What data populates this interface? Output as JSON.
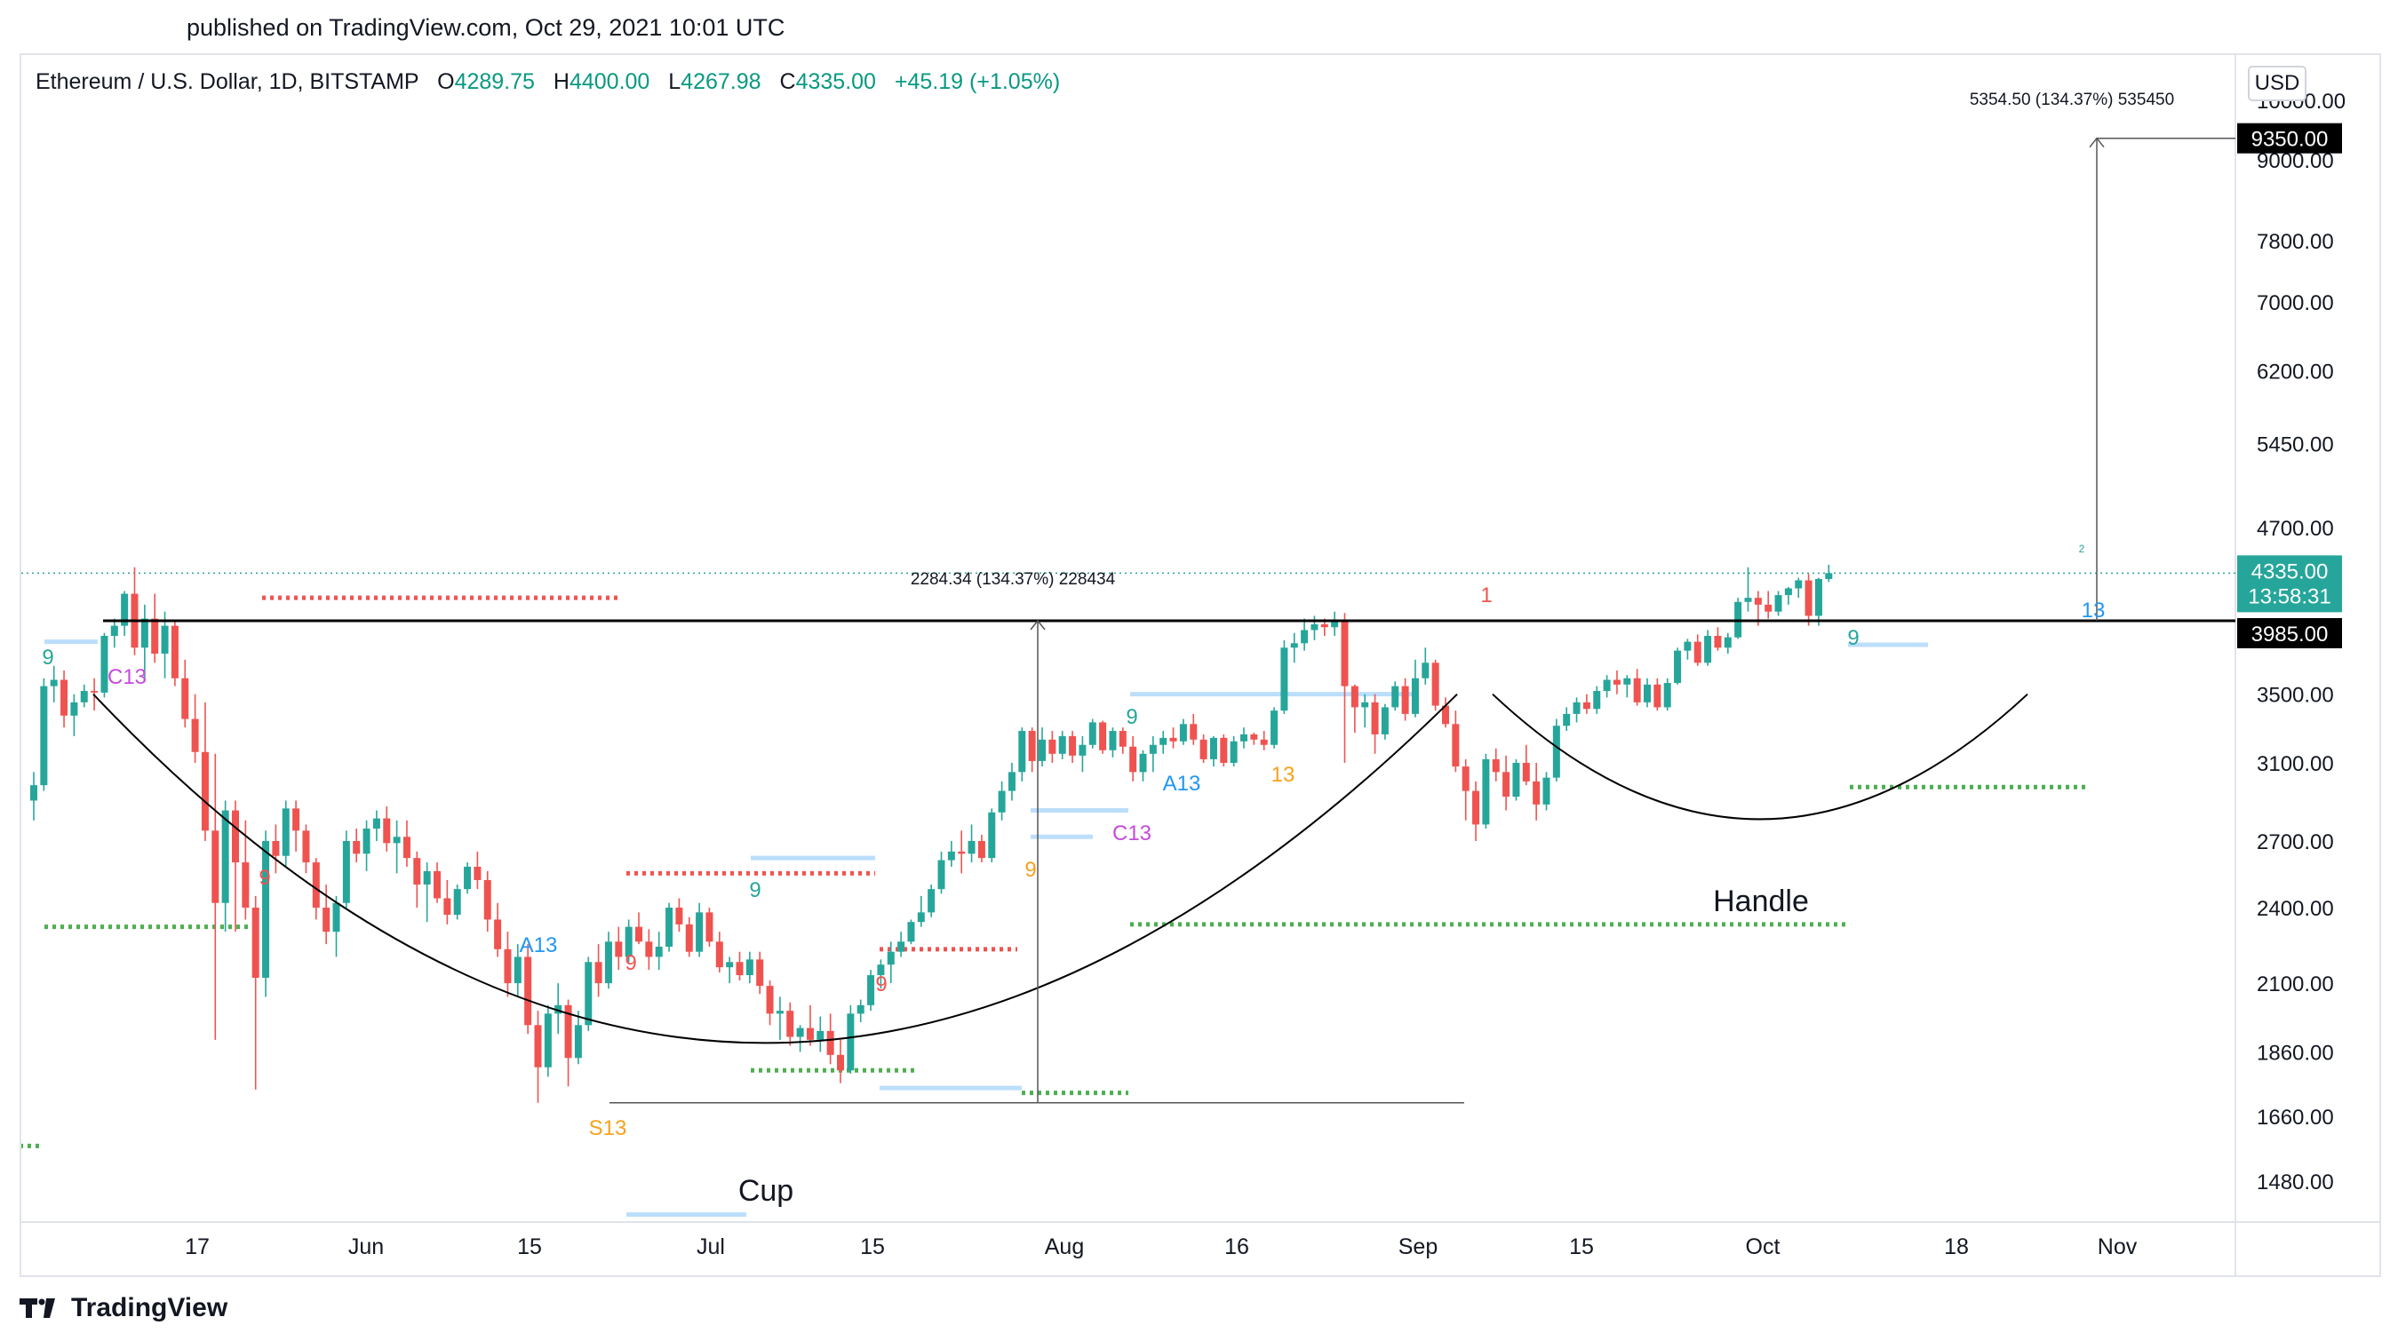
{
  "header": {
    "published": "published on TradingView.com, Oct 29, 2021 10:01 UTC"
  },
  "legend": {
    "symbol": "Ethereum / U.S. Dollar, 1D, BITSTAMP",
    "open_label": "O",
    "open": "4289.75",
    "high_label": "H",
    "high": "4400.00",
    "low_label": "L",
    "low": "4267.98",
    "close_label": "C",
    "close": "4335.00",
    "change": "+45.19 (+1.05%)"
  },
  "currency_button": "USD",
  "footer": {
    "brand": "TradingView"
  },
  "colors": {
    "up": "#26a69a",
    "down": "#ef5350",
    "green_dots": "#4caf50",
    "red_dots": "#ef5350",
    "blue_line": "#bbdefb",
    "neckline": "#000000",
    "price_badge": "#26a69a"
  },
  "chart_data": {
    "type": "candlestick",
    "symbol": "ETH/USD",
    "timeframe": "1D",
    "scale": "log",
    "ylim": [
      1330,
      10000
    ],
    "y_ticks": [
      "1480.00",
      "1660.00",
      "1860.00",
      "2100.00",
      "2400.00",
      "2700.00",
      "3100.00",
      "3500.00",
      "4700.00",
      "5450.00",
      "6200.00",
      "7000.00",
      "7800.00",
      "9000.00",
      "10000.00"
    ],
    "x_ticks": [
      "17",
      "Jun",
      "15",
      "Jul",
      "15",
      "Aug",
      "16",
      "Sep",
      "15",
      "Oct",
      "18",
      "Nov"
    ],
    "price_labels": {
      "current": "4335.00",
      "countdown": "13:58:31",
      "neckline": "3985.00",
      "target": "9350.00"
    },
    "annotations": {
      "cup": "Cup",
      "handle": "Handle",
      "measure_cup": "2284.34 (134.37%) 228434",
      "measure_target": "5354.50 (134.37%) 535450"
    },
    "indicator_labels": [
      "9",
      "C13",
      "9",
      "A13",
      "9",
      "S13",
      "9",
      "9",
      "9",
      "9",
      "C13",
      "A13",
      "13",
      "1",
      "9",
      "2",
      "13"
    ],
    "ohlc": [
      [
        2900,
        3050,
        2800,
        2980
      ],
      [
        2980,
        3600,
        2950,
        3550
      ],
      [
        3550,
        3680,
        3450,
        3590
      ],
      [
        3590,
        3650,
        3300,
        3370
      ],
      [
        3370,
        3500,
        3250,
        3450
      ],
      [
        3450,
        3560,
        3420,
        3520
      ],
      [
        3520,
        3600,
        3400,
        3510
      ],
      [
        3510,
        3900,
        3480,
        3880
      ],
      [
        3880,
        4000,
        3800,
        3950
      ],
      [
        3950,
        4200,
        3880,
        4180
      ],
      [
        4180,
        4380,
        3750,
        3800
      ],
      [
        3800,
        4100,
        3600,
        4000
      ],
      [
        4000,
        4180,
        3700,
        3760
      ],
      [
        3760,
        4050,
        3600,
        3950
      ],
      [
        3950,
        3980,
        3550,
        3600
      ],
      [
        3600,
        3720,
        3300,
        3350
      ],
      [
        3350,
        3500,
        3100,
        3160
      ],
      [
        3160,
        3450,
        2700,
        2750
      ],
      [
        2750,
        3150,
        1900,
        2420
      ],
      [
        2420,
        2900,
        2300,
        2850
      ],
      [
        2850,
        2900,
        2300,
        2600
      ],
      [
        2600,
        2800,
        2350,
        2400
      ],
      [
        2400,
        2450,
        1740,
        2120
      ],
      [
        2120,
        2750,
        2050,
        2700
      ],
      [
        2700,
        2780,
        2550,
        2630
      ],
      [
        2630,
        2900,
        2580,
        2860
      ],
      [
        2860,
        2900,
        2650,
        2750
      ],
      [
        2750,
        2780,
        2550,
        2600
      ],
      [
        2600,
        2620,
        2350,
        2400
      ],
      [
        2400,
        2500,
        2250,
        2300
      ],
      [
        2300,
        2450,
        2200,
        2420
      ],
      [
        2420,
        2750,
        2400,
        2700
      ],
      [
        2700,
        2760,
        2600,
        2640
      ],
      [
        2640,
        2800,
        2560,
        2760
      ],
      [
        2760,
        2850,
        2700,
        2810
      ],
      [
        2810,
        2870,
        2650,
        2690
      ],
      [
        2690,
        2800,
        2550,
        2720
      ],
      [
        2720,
        2800,
        2580,
        2620
      ],
      [
        2620,
        2650,
        2400,
        2500
      ],
      [
        2500,
        2600,
        2340,
        2560
      ],
      [
        2560,
        2600,
        2420,
        2440
      ],
      [
        2440,
        2520,
        2330,
        2370
      ],
      [
        2370,
        2500,
        2350,
        2480
      ],
      [
        2480,
        2600,
        2460,
        2580
      ],
      [
        2580,
        2650,
        2480,
        2520
      ],
      [
        2520,
        2560,
        2300,
        2350
      ],
      [
        2350,
        2420,
        2200,
        2230
      ],
      [
        2230,
        2300,
        2050,
        2100
      ],
      [
        2100,
        2250,
        2050,
        2200
      ],
      [
        2200,
        2250,
        1920,
        1950
      ],
      [
        1950,
        2000,
        1700,
        1810
      ],
      [
        1810,
        2020,
        1780,
        1990
      ],
      [
        1990,
        2100,
        1920,
        2020
      ],
      [
        2020,
        2040,
        1750,
        1840
      ],
      [
        1840,
        2000,
        1820,
        1950
      ],
      [
        1950,
        2200,
        1930,
        2180
      ],
      [
        2180,
        2250,
        2050,
        2100
      ],
      [
        2100,
        2300,
        2080,
        2260
      ],
      [
        2260,
        2320,
        2150,
        2200
      ],
      [
        2200,
        2350,
        2180,
        2320
      ],
      [
        2320,
        2380,
        2250,
        2260
      ],
      [
        2260,
        2310,
        2150,
        2200
      ],
      [
        2200,
        2300,
        2150,
        2240
      ],
      [
        2240,
        2420,
        2220,
        2400
      ],
      [
        2400,
        2440,
        2300,
        2330
      ],
      [
        2330,
        2360,
        2200,
        2220
      ],
      [
        2220,
        2420,
        2200,
        2380
      ],
      [
        2380,
        2400,
        2240,
        2260
      ],
      [
        2260,
        2300,
        2140,
        2160
      ],
      [
        2160,
        2200,
        2100,
        2180
      ],
      [
        2180,
        2220,
        2110,
        2130
      ],
      [
        2130,
        2220,
        2100,
        2190
      ],
      [
        2190,
        2220,
        2060,
        2090
      ],
      [
        2090,
        2110,
        1950,
        1990
      ],
      [
        1990,
        2050,
        1900,
        2000
      ],
      [
        2000,
        2030,
        1880,
        1910
      ],
      [
        1910,
        1950,
        1860,
        1940
      ],
      [
        1940,
        2020,
        1880,
        1900
      ],
      [
        1900,
        1980,
        1860,
        1930
      ],
      [
        1930,
        1990,
        1820,
        1850
      ],
      [
        1850,
        1900,
        1760,
        1800
      ],
      [
        1800,
        2020,
        1790,
        1990
      ],
      [
        1990,
        2040,
        1960,
        2020
      ],
      [
        2020,
        2150,
        2000,
        2130
      ],
      [
        2130,
        2190,
        2080,
        2170
      ],
      [
        2170,
        2260,
        2100,
        2220
      ],
      [
        2220,
        2300,
        2200,
        2260
      ],
      [
        2260,
        2350,
        2250,
        2340
      ],
      [
        2340,
        2450,
        2320,
        2380
      ],
      [
        2380,
        2500,
        2360,
        2480
      ],
      [
        2480,
        2650,
        2460,
        2610
      ],
      [
        2610,
        2700,
        2580,
        2650
      ],
      [
        2650,
        2750,
        2550,
        2640
      ],
      [
        2640,
        2780,
        2600,
        2700
      ],
      [
        2700,
        2730,
        2600,
        2620
      ],
      [
        2620,
        2860,
        2600,
        2840
      ],
      [
        2840,
        3000,
        2800,
        2950
      ],
      [
        2950,
        3100,
        2900,
        3050
      ],
      [
        3050,
        3300,
        3000,
        3280
      ],
      [
        3280,
        3300,
        3050,
        3110
      ],
      [
        3110,
        3300,
        3080,
        3230
      ],
      [
        3230,
        3280,
        3100,
        3150
      ],
      [
        3150,
        3280,
        3120,
        3250
      ],
      [
        3250,
        3280,
        3100,
        3140
      ],
      [
        3140,
        3250,
        3050,
        3200
      ],
      [
        3200,
        3350,
        3180,
        3330
      ],
      [
        3330,
        3340,
        3150,
        3170
      ],
      [
        3170,
        3300,
        3130,
        3280
      ],
      [
        3280,
        3300,
        3150,
        3190
      ],
      [
        3190,
        3250,
        3000,
        3050
      ],
      [
        3050,
        3170,
        3000,
        3150
      ],
      [
        3150,
        3250,
        3050,
        3200
      ],
      [
        3200,
        3280,
        3150,
        3240
      ],
      [
        3240,
        3300,
        3180,
        3220
      ],
      [
        3220,
        3350,
        3200,
        3320
      ],
      [
        3320,
        3380,
        3200,
        3230
      ],
      [
        3230,
        3260,
        3100,
        3120
      ],
      [
        3120,
        3250,
        3080,
        3240
      ],
      [
        3240,
        3260,
        3080,
        3100
      ],
      [
        3100,
        3250,
        3080,
        3220
      ],
      [
        3220,
        3300,
        3180,
        3260
      ],
      [
        3260,
        3270,
        3200,
        3230
      ],
      [
        3230,
        3280,
        3170,
        3200
      ],
      [
        3200,
        3420,
        3180,
        3400
      ],
      [
        3400,
        3850,
        3380,
        3800
      ],
      [
        3800,
        3900,
        3700,
        3830
      ],
      [
        3830,
        4000,
        3780,
        3920
      ],
      [
        3920,
        4020,
        3850,
        3960
      ],
      [
        3960,
        4000,
        3880,
        3940
      ],
      [
        3940,
        4050,
        3880,
        3990
      ],
      [
        3990,
        4040,
        3100,
        3550
      ],
      [
        3550,
        3560,
        3270,
        3420
      ],
      [
        3420,
        3500,
        3300,
        3450
      ],
      [
        3450,
        3500,
        3150,
        3260
      ],
      [
        3260,
        3440,
        3230,
        3420
      ],
      [
        3420,
        3580,
        3400,
        3550
      ],
      [
        3550,
        3600,
        3340,
        3380
      ],
      [
        3380,
        3720,
        3360,
        3600
      ],
      [
        3600,
        3800,
        3560,
        3700
      ],
      [
        3700,
        3720,
        3400,
        3430
      ],
      [
        3430,
        3480,
        3300,
        3320
      ],
      [
        3320,
        3400,
        3050,
        3080
      ],
      [
        3080,
        3120,
        2800,
        2950
      ],
      [
        2950,
        3000,
        2700,
        2780
      ],
      [
        2780,
        3150,
        2760,
        3120
      ],
      [
        3120,
        3180,
        3000,
        3050
      ],
      [
        3050,
        3140,
        2850,
        2920
      ],
      [
        2920,
        3120,
        2900,
        3100
      ],
      [
        3100,
        3200,
        2980,
        3000
      ],
      [
        3000,
        3100,
        2800,
        2880
      ],
      [
        2880,
        3050,
        2850,
        3020
      ],
      [
        3020,
        3350,
        3000,
        3310
      ],
      [
        3310,
        3420,
        3280,
        3380
      ],
      [
        3380,
        3480,
        3330,
        3450
      ],
      [
        3450,
        3500,
        3380,
        3410
      ],
      [
        3410,
        3550,
        3380,
        3520
      ],
      [
        3520,
        3620,
        3480,
        3590
      ],
      [
        3590,
        3650,
        3500,
        3560
      ],
      [
        3560,
        3620,
        3480,
        3600
      ],
      [
        3600,
        3660,
        3430,
        3450
      ],
      [
        3450,
        3600,
        3420,
        3560
      ],
      [
        3560,
        3600,
        3400,
        3420
      ],
      [
        3420,
        3600,
        3400,
        3570
      ],
      [
        3570,
        3800,
        3560,
        3780
      ],
      [
        3780,
        3860,
        3720,
        3840
      ],
      [
        3840,
        3890,
        3680,
        3700
      ],
      [
        3700,
        3920,
        3680,
        3880
      ],
      [
        3880,
        3940,
        3780,
        3800
      ],
      [
        3800,
        3900,
        3760,
        3870
      ],
      [
        3870,
        4150,
        3860,
        4120
      ],
      [
        4120,
        4380,
        4050,
        4150
      ],
      [
        4150,
        4200,
        3950,
        4100
      ],
      [
        4100,
        4200,
        4000,
        4050
      ],
      [
        4050,
        4200,
        4020,
        4170
      ],
      [
        4170,
        4230,
        4100,
        4220
      ],
      [
        4220,
        4300,
        4150,
        4280
      ],
      [
        4280,
        4330,
        3950,
        4020
      ],
      [
        4020,
        4300,
        3950,
        4290
      ],
      [
        4290,
        4400,
        4268,
        4335
      ]
    ]
  }
}
